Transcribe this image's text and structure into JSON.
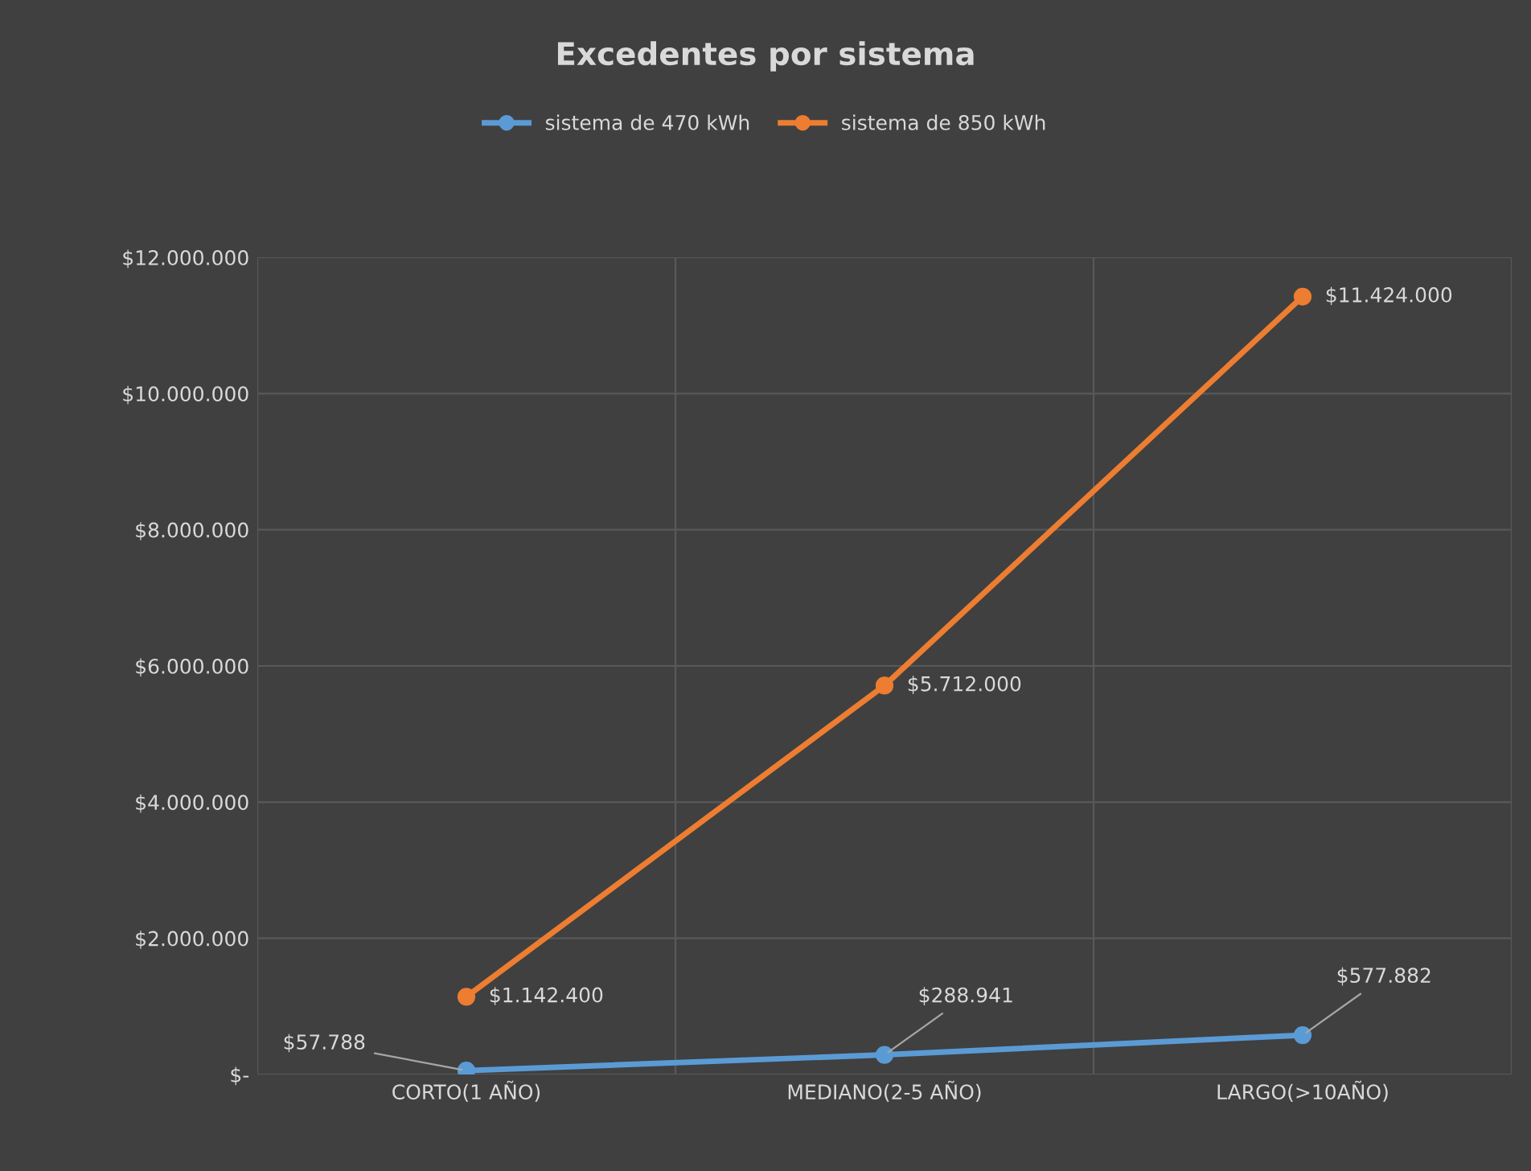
{
  "chart_data": {
    "type": "line",
    "title": "Excedentes por sistema",
    "categories": [
      "CORTO(1 AÑO)",
      "MEDIANO(2-5 AÑO)",
      "LARGO(>10AÑO)"
    ],
    "series": [
      {
        "name": "sistema de 470 kWh",
        "color": "#5b9bd5",
        "values": [
          57788,
          288941,
          577882
        ],
        "value_labels": [
          "$57.788",
          "$288.941",
          "$577.882"
        ]
      },
      {
        "name": "sistema de 850 kWh",
        "color": "#ed7d31",
        "values": [
          1142400,
          5712000,
          11424000
        ],
        "value_labels": [
          "$1.142.400",
          "$5.712.000",
          "$11.424.000"
        ]
      }
    ],
    "ylim": [
      0,
      12000000
    ],
    "yticks": [
      {
        "value": 0,
        "label": "$-"
      },
      {
        "value": 2000000,
        "label": "$2.000.000"
      },
      {
        "value": 4000000,
        "label": "$4.000.000"
      },
      {
        "value": 6000000,
        "label": "$6.000.000"
      },
      {
        "value": 8000000,
        "label": "$8.000.000"
      },
      {
        "value": 10000000,
        "label": "$10.000.000"
      },
      {
        "value": 12000000,
        "label": "$12.000.000"
      }
    ],
    "grid": true,
    "legend": "top",
    "marker": "circle",
    "line_style": "solid"
  }
}
